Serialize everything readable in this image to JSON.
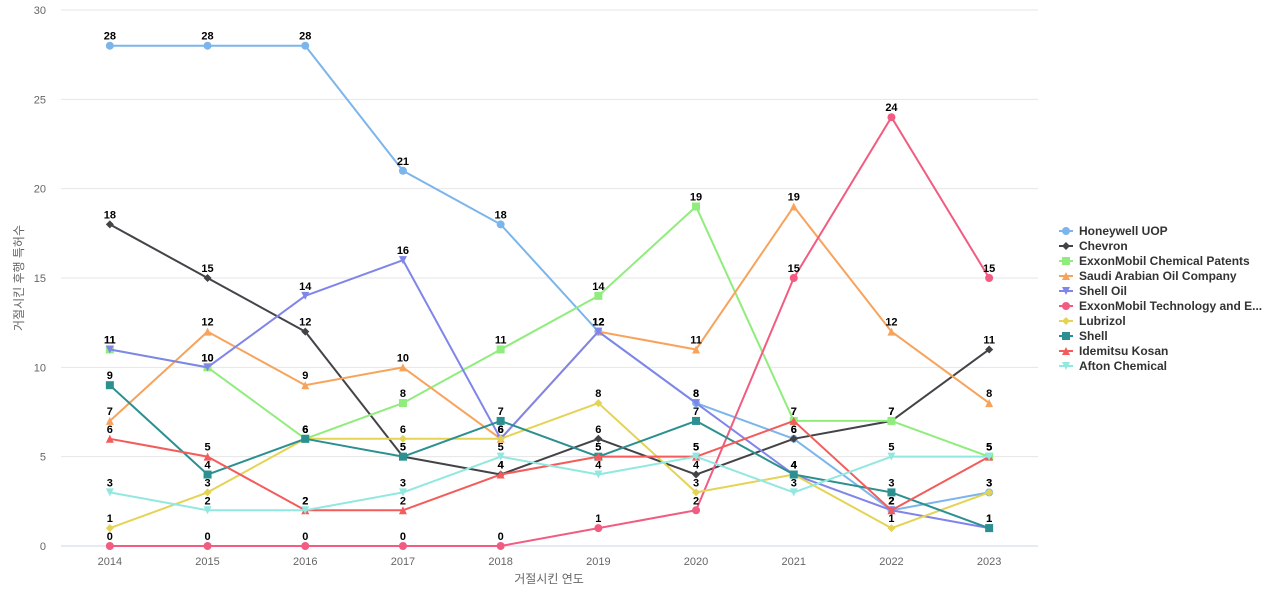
{
  "chart_data": {
    "type": "line",
    "title": "",
    "xlabel": "거절시킨 연도",
    "ylabel": "거절시킨 후행 특허수",
    "x": [
      "2014",
      "2015",
      "2016",
      "2017",
      "2018",
      "2019",
      "2020",
      "2021",
      "2022",
      "2023"
    ],
    "ylim": [
      0,
      30
    ],
    "yticks": [
      0,
      5,
      10,
      15,
      20,
      25,
      30
    ],
    "grid": true,
    "legend_position": "right",
    "series": [
      {
        "name": "Honeywell UOP",
        "color": "#7cb5ec",
        "marker": "circle",
        "values": [
          28,
          28,
          28,
          21,
          18,
          12,
          8,
          6,
          2,
          3
        ]
      },
      {
        "name": "Chevron",
        "color": "#434348",
        "marker": "diamond",
        "values": [
          18,
          15,
          12,
          5,
          4,
          6,
          4,
          6,
          7,
          11
        ]
      },
      {
        "name": "ExxonMobil Chemical Patents",
        "color": "#90ed7d",
        "marker": "square",
        "values": [
          11,
          10,
          6,
          8,
          11,
          14,
          19,
          7,
          7,
          5
        ]
      },
      {
        "name": "Saudi Arabian Oil Company",
        "color": "#f7a35c",
        "marker": "triangle",
        "values": [
          7,
          12,
          9,
          10,
          6,
          12,
          11,
          19,
          12,
          8
        ]
      },
      {
        "name": "Shell Oil",
        "color": "#8085e9",
        "marker": "triangle-down",
        "values": [
          11,
          10,
          14,
          16,
          6,
          12,
          8,
          4,
          2,
          1
        ]
      },
      {
        "name": "ExxonMobil Technology and E...",
        "color": "#f15c80",
        "marker": "circle",
        "values": [
          0,
          0,
          0,
          0,
          0,
          1,
          2,
          15,
          24,
          15
        ]
      },
      {
        "name": "Lubrizol",
        "color": "#e4d354",
        "marker": "diamond",
        "values": [
          1,
          3,
          6,
          6,
          6,
          8,
          3,
          4,
          1,
          3
        ]
      },
      {
        "name": "Shell",
        "color": "#2b908f",
        "marker": "square",
        "values": [
          9,
          4,
          6,
          5,
          7,
          5,
          7,
          4,
          3,
          1
        ]
      },
      {
        "name": "Idemitsu Kosan",
        "color": "#f45b5b",
        "marker": "triangle",
        "values": [
          6,
          5,
          2,
          2,
          4,
          5,
          5,
          7,
          2,
          5
        ]
      },
      {
        "name": "Afton Chemical",
        "color": "#91e8e1",
        "marker": "triangle-down",
        "values": [
          3,
          2,
          2,
          3,
          5,
          4,
          5,
          3,
          5,
          5
        ]
      }
    ]
  }
}
